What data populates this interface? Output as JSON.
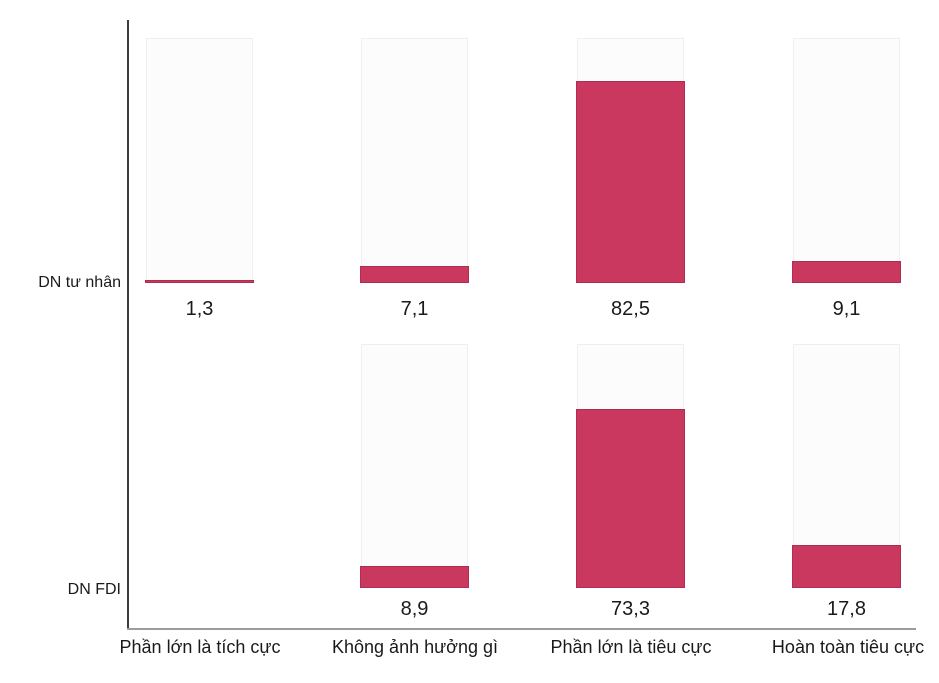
{
  "chart_data": {
    "type": "bar",
    "orientation": "vertical",
    "layout": "paneled; one row of panels per series, one panel per category",
    "categories": [
      "Phần lớn là tích cực",
      "Không ảnh hưởng gì",
      "Phần lớn là tiêu cực",
      "Hoàn toàn tiêu cực"
    ],
    "series": [
      {
        "name": "DN tư nhân",
        "values": [
          1.3,
          7.1,
          82.5,
          9.1
        ],
        "labels": [
          "1,3",
          "7,1",
          "82,5",
          "9,1"
        ]
      },
      {
        "name": "DN FDI",
        "values": [
          null,
          8.9,
          73.3,
          17.8
        ],
        "labels": [
          null,
          "8,9",
          "73,3",
          "17,8"
        ]
      }
    ],
    "ylim": [
      0,
      100
    ],
    "grid": false,
    "legend": false,
    "value_label_decimal_separator": ",",
    "colors": {
      "bar_fill": "#ca385f",
      "bar_border": "#ae2d50",
      "panel_background": "#fcfcfc",
      "panel_border": "#efefef",
      "y_axis_line": "#3d3d3d",
      "x_axis_line": "#9c9c9c",
      "text": "#1a1a1a"
    }
  }
}
